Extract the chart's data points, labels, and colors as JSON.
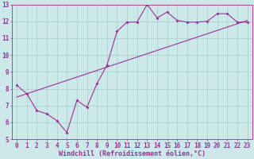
{
  "xlabel": "Windchill (Refroidissement éolien,°C)",
  "bg_color": "#cce8e8",
  "line_color": "#993399",
  "grid_color": "#aacccc",
  "xlim": [
    -0.5,
    23.5
  ],
  "ylim": [
    5,
    13
  ],
  "xticks": [
    0,
    1,
    2,
    3,
    4,
    5,
    6,
    7,
    8,
    9,
    10,
    11,
    12,
    13,
    14,
    15,
    16,
    17,
    18,
    19,
    20,
    21,
    22,
    23
  ],
  "yticks": [
    5,
    6,
    7,
    8,
    9,
    10,
    11,
    12,
    13
  ],
  "zigzag_x": [
    0,
    1,
    2,
    3,
    4,
    5,
    6,
    7,
    8,
    9,
    10,
    11,
    12,
    13,
    14,
    15,
    16,
    17,
    18,
    19,
    20,
    21,
    22,
    23
  ],
  "zigzag_y": [
    8.2,
    7.7,
    6.7,
    6.5,
    6.1,
    5.4,
    7.3,
    6.9,
    8.3,
    9.4,
    11.4,
    11.95,
    11.95,
    13.0,
    12.2,
    12.55,
    12.05,
    11.95,
    11.95,
    12.0,
    12.45,
    12.45,
    11.95,
    11.95
  ],
  "trend_x": [
    0,
    23
  ],
  "trend_y": [
    7.5,
    12.05
  ],
  "tick_fontsize": 5.5,
  "xlabel_fontsize": 6.0,
  "marker_size": 2.0
}
